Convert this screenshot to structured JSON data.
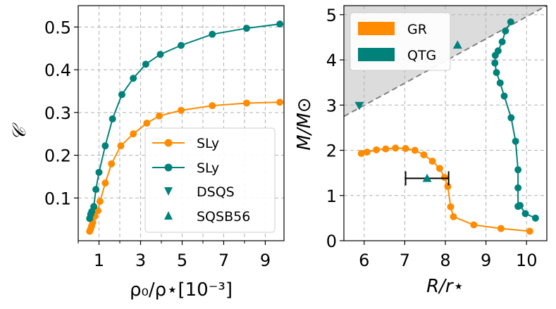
{
  "chart_data": [
    {
      "type": "line",
      "panel": "left",
      "xlabel": "ρ₀/ρ⋆[10⁻³]",
      "ylabel": "𝒞",
      "xlim": [
        0.0,
        9.9
      ],
      "ylim": [
        0.0,
        0.55
      ],
      "xticks": [
        1,
        3,
        5,
        7,
        9
      ],
      "xtick_labels": [
        "1",
        "3",
        "5",
        "7",
        "9"
      ],
      "xminor": [
        0,
        2,
        4,
        6,
        8
      ],
      "yticks": [
        0.1,
        0.2,
        0.3,
        0.4,
        0.5
      ],
      "ytick_labels": [
        "0.1",
        "0.2",
        "0.3",
        "0.4",
        "0.5"
      ],
      "grid": true,
      "legend_position": "lower-right",
      "series": [
        {
          "name": "SLy",
          "color": "#ff8c00",
          "marker": "circle",
          "x": [
            0.55,
            0.6,
            0.65,
            0.7,
            0.8,
            0.95,
            1.05,
            1.3,
            1.6,
            2.05,
            2.65,
            3.3,
            3.9,
            4.95,
            6.45,
            8.1,
            9.7
          ],
          "y": [
            0.022,
            0.028,
            0.035,
            0.043,
            0.057,
            0.07,
            0.092,
            0.135,
            0.18,
            0.222,
            0.25,
            0.275,
            0.292,
            0.305,
            0.316,
            0.322,
            0.324
          ]
        },
        {
          "name": "SLy",
          "color": "#00827a",
          "marker": "circle",
          "x": [
            0.55,
            0.6,
            0.65,
            0.75,
            0.85,
            1.0,
            1.3,
            1.65,
            2.1,
            2.65,
            3.25,
            3.95,
            4.95,
            6.45,
            8.1,
            9.7
          ],
          "y": [
            0.052,
            0.062,
            0.068,
            0.08,
            0.12,
            0.16,
            0.222,
            0.285,
            0.342,
            0.38,
            0.413,
            0.436,
            0.457,
            0.483,
            0.497,
            0.507
          ]
        }
      ],
      "legend": [
        {
          "label": "SLy",
          "color": "#ff8c00",
          "marker": "circle-line"
        },
        {
          "label": "SLy",
          "color": "#00827a",
          "marker": "circle-line"
        },
        {
          "label": "DSQS",
          "color": "#00827a",
          "marker": "triangle-down"
        },
        {
          "label": "SQSB56",
          "color": "#00827a",
          "marker": "triangle-up"
        }
      ]
    },
    {
      "type": "line",
      "panel": "right",
      "xlabel": "R/r⋆",
      "ylabel": "M/M⊙",
      "xlim": [
        5.5,
        10.5
      ],
      "ylim": [
        0.0,
        5.2
      ],
      "xticks": [
        6,
        7,
        8,
        9,
        10
      ],
      "xtick_labels": [
        "6",
        "7",
        "8",
        "9",
        "10"
      ],
      "yticks": [
        0,
        1,
        2,
        3,
        4,
        5
      ],
      "ytick_labels": [
        "0",
        "1",
        "2",
        "3",
        "4",
        "5"
      ],
      "grid": true,
      "legend_position": "upper-left",
      "shaded_limit_line": {
        "x": [
          5.5,
          10.5
        ],
        "y": [
          2.75,
          5.2
        ],
        "fill": "#dcdcdc",
        "line_color": "#808080"
      },
      "series": [
        {
          "name": "GR",
          "color": "#ff8c00",
          "marker": "circle",
          "x": [
            5.93,
            6.07,
            6.3,
            6.53,
            6.77,
            7.02,
            7.25,
            7.47,
            7.68,
            7.86,
            7.98,
            8.06,
            8.13,
            8.2,
            8.7,
            9.37,
            10.08
          ],
          "y": [
            1.93,
            1.96,
            2.01,
            2.03,
            2.05,
            2.04,
            2.0,
            1.9,
            1.76,
            1.6,
            1.4,
            1.2,
            0.75,
            0.53,
            0.35,
            0.27,
            0.21
          ]
        },
        {
          "name": "QTG",
          "color": "#00827a",
          "marker": "circle",
          "x": [
            9.61,
            9.48,
            9.4,
            9.3,
            9.23,
            9.22,
            9.26,
            9.35,
            9.45,
            9.62,
            9.73,
            9.79,
            9.79,
            9.79,
            9.84,
            9.97,
            10.22
          ],
          "y": [
            4.84,
            4.64,
            4.4,
            4.2,
            4.1,
            3.93,
            3.72,
            3.49,
            3.2,
            2.72,
            2.2,
            1.57,
            1.17,
            0.76,
            0.78,
            0.6,
            0.5
          ]
        }
      ],
      "points": [
        {
          "name": "DSQS",
          "marker": "triangle-down",
          "color": "#00827a",
          "x": 5.88,
          "y": 2.99
        },
        {
          "name": "SQSB56",
          "marker": "triangle-up",
          "color": "#00827a",
          "x": 8.3,
          "y": 4.33
        },
        {
          "name": "SQSB56",
          "marker": "triangle-up",
          "color": "#00827a",
          "x": 7.55,
          "y": 1.38
        }
      ],
      "error_bar": {
        "x_min": 7.02,
        "x_max": 8.08,
        "y": 1.38,
        "color": "#000000"
      },
      "legend": [
        {
          "label": "GR",
          "color": "#ff8c00",
          "marker": "patch"
        },
        {
          "label": "QTG",
          "color": "#00827a",
          "marker": "patch"
        }
      ]
    }
  ]
}
